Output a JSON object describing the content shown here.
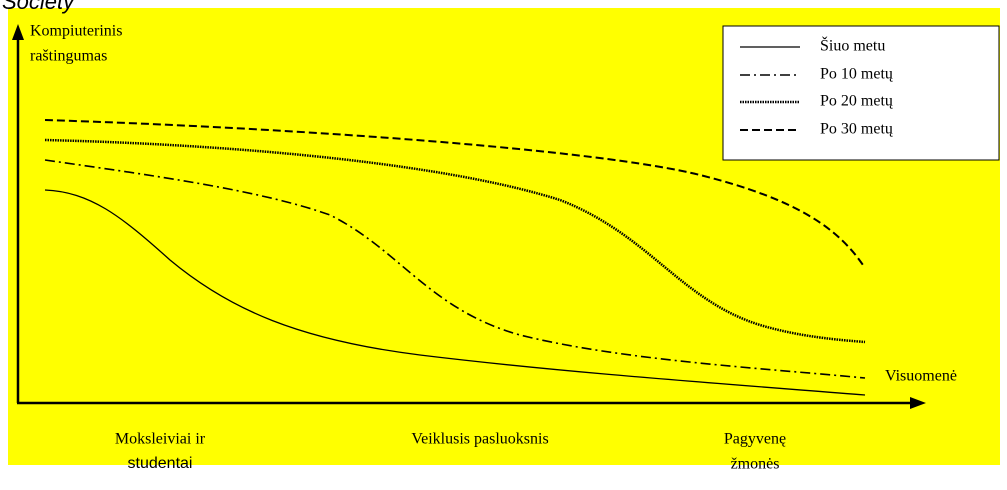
{
  "title": "Society",
  "y_axis_label": [
    "Kompiuterinis",
    "raštingumas"
  ],
  "x_axis_label": "Visuomenė",
  "groups": [
    {
      "lines": [
        "Moksleiviai ir",
        "studentai"
      ]
    },
    {
      "lines": [
        "Veiklusis pasluoksnis"
      ]
    },
    {
      "lines": [
        "Pagyvenę",
        "žmonės"
      ]
    }
  ],
  "legend": [
    "Šiuo metu",
    "Po 10 metų",
    "Po 20 metų",
    "Po 30 metų"
  ]
}
